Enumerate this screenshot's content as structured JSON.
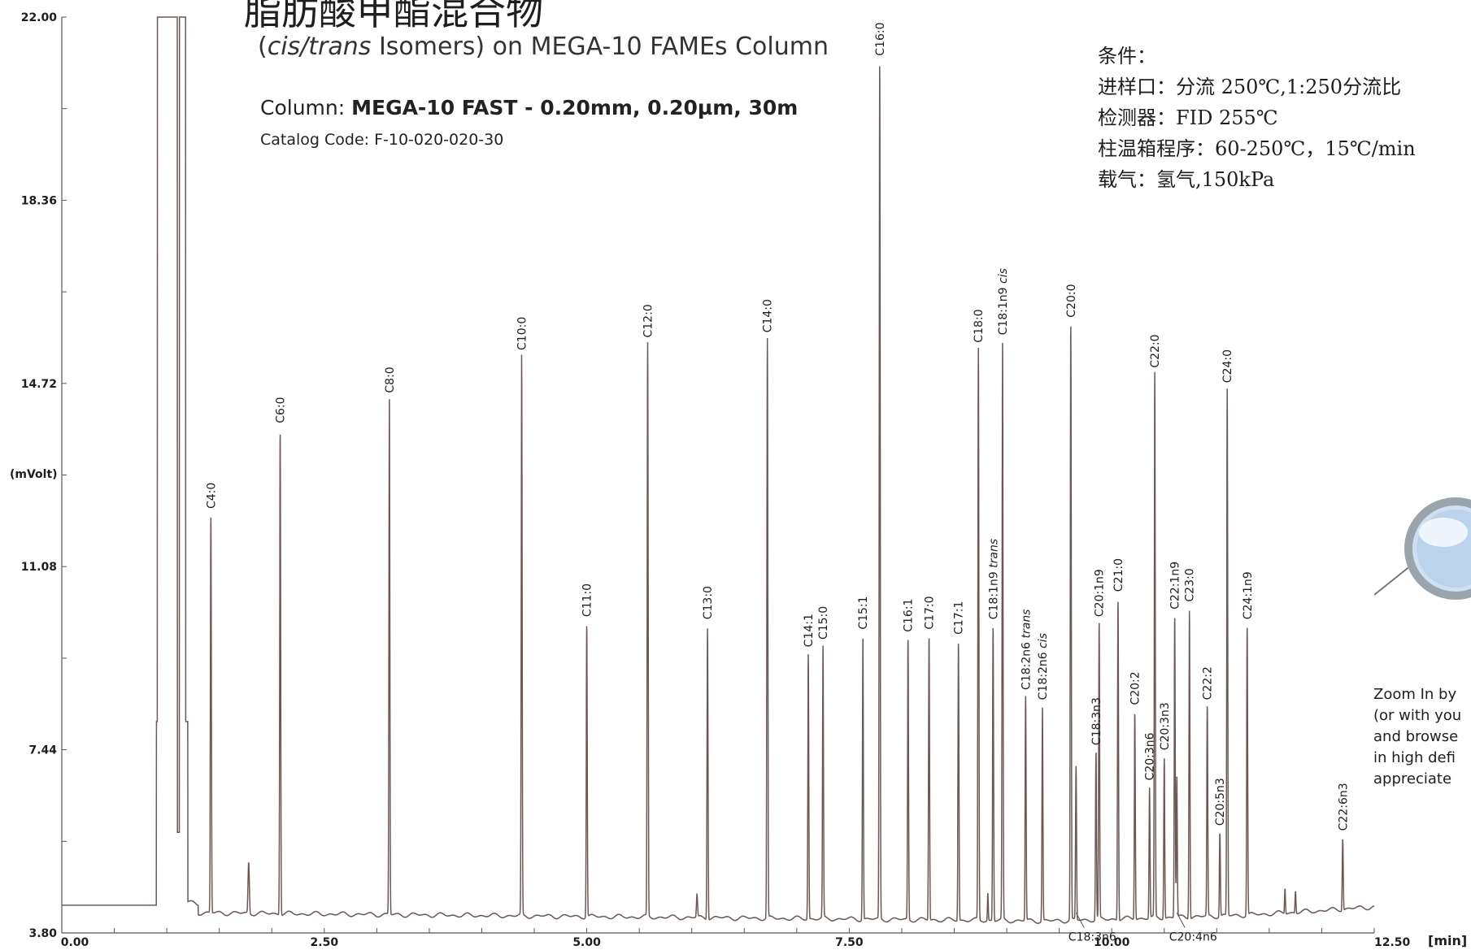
{
  "header": {
    "title_cn": "脂肪酸甲酯混合物",
    "subtitle_pre": "(",
    "subtitle_italic": "cis/trans",
    "subtitle_post": " Isomers) on MEGA-10 FAMEs Column",
    "column_label": "Column: ",
    "column_value": "MEGA-10 FAST - 0.20mm, 0.20µm, 30m",
    "catalog": "Catalog Code: F-10-020-020-30"
  },
  "conditions": {
    "heading": "条件：",
    "lines": [
      "进样口：分流 250℃,1:250分流比",
      "检测器：FID 255℃",
      "柱温箱程序：60-250℃，15℃/min",
      "载气：氢气,150kPa"
    ]
  },
  "zoom_hint": {
    "lines": [
      "Zoom In by",
      "(or with you",
      "and browse",
      "in high defi",
      "appreciate"
    ]
  },
  "colors": {
    "trace": "#6a5a55",
    "axis": "#555555",
    "text": "#1e1e1e"
  },
  "chart_data": {
    "type": "line",
    "xlabel": "[min]",
    "ylabel": "(mVolt)",
    "xlim": [
      0,
      12.5
    ],
    "ylim": [
      3.8,
      22.0
    ],
    "x_ticks": [
      "0.00",
      "2.50",
      "5.00",
      "7.50",
      "10.00",
      "12.50"
    ],
    "y_ticks": [
      "3.80",
      "7.44",
      "11.08",
      "14.72",
      "18.36",
      "22.00"
    ],
    "grid": false,
    "peaks": [
      {
        "label": "C4:0",
        "rt": 1.42,
        "height": 12.1
      },
      {
        "label": "C6:0",
        "rt": 2.08,
        "height": 13.8
      },
      {
        "label": "C8:0",
        "rt": 3.12,
        "height": 14.4
      },
      {
        "label": "C10:0",
        "rt": 4.38,
        "height": 15.25
      },
      {
        "label": "C11:0",
        "rt": 5.0,
        "height": 9.95
      },
      {
        "label": "C12:0",
        "rt": 5.58,
        "height": 15.5
      },
      {
        "label": "C13:0",
        "rt": 6.15,
        "height": 9.9
      },
      {
        "label": "C14:0",
        "rt": 6.72,
        "height": 15.6
      },
      {
        "label": "C14:1",
        "rt": 7.11,
        "height": 9.35
      },
      {
        "label": "C15:0",
        "rt": 7.25,
        "height": 9.5
      },
      {
        "label": "C15:1",
        "rt": 7.63,
        "height": 9.7
      },
      {
        "label": "C16:0",
        "rt": 7.79,
        "height": 21.1
      },
      {
        "label": "C16:1",
        "rt": 8.06,
        "height": 9.65
      },
      {
        "label": "C17:0",
        "rt": 8.26,
        "height": 9.7
      },
      {
        "label": "C17:1",
        "rt": 8.54,
        "height": 9.6
      },
      {
        "label": "C18:0",
        "rt": 8.73,
        "height": 15.4
      },
      {
        "label": "C18:1n9 trans",
        "rt": 8.87,
        "height": 9.9
      },
      {
        "label": "C18:1n9 cis",
        "rt": 8.96,
        "height": 15.55
      },
      {
        "label": "C18:2n6 trans",
        "rt": 9.18,
        "height": 8.5
      },
      {
        "label": "C18:2n6 cis",
        "rt": 9.34,
        "height": 8.3
      },
      {
        "label": "C20:0",
        "rt": 9.61,
        "height": 15.9
      },
      {
        "label": "C18:3n6",
        "rt": 9.66,
        "height": 7.1
      },
      {
        "label": "C18:3n3",
        "rt": 9.85,
        "height": 7.4
      },
      {
        "label": "C20:1n9",
        "rt": 9.88,
        "height": 9.95
      },
      {
        "label": "C21:0",
        "rt": 10.06,
        "height": 10.45
      },
      {
        "label": "C20:2",
        "rt": 10.22,
        "height": 8.2
      },
      {
        "label": "C20:3n6",
        "rt": 10.36,
        "height": 6.7
      },
      {
        "label": "C22:0",
        "rt": 10.41,
        "height": 14.9
      },
      {
        "label": "C20:3n3",
        "rt": 10.5,
        "height": 7.3
      },
      {
        "label": "C22:1n9",
        "rt": 10.6,
        "height": 10.1
      },
      {
        "label": "C20:4n6",
        "rt": 10.62,
        "height": 6.9
      },
      {
        "label": "C23:0",
        "rt": 10.74,
        "height": 10.25
      },
      {
        "label": "C22:2",
        "rt": 10.91,
        "height": 8.3
      },
      {
        "label": "C20:5n3",
        "rt": 11.03,
        "height": 5.8
      },
      {
        "label": "C24:0",
        "rt": 11.1,
        "height": 14.6
      },
      {
        "label": "C24:1n9",
        "rt": 11.29,
        "height": 9.9
      },
      {
        "label": "C22:6n3",
        "rt": 12.2,
        "height": 5.7
      }
    ]
  }
}
